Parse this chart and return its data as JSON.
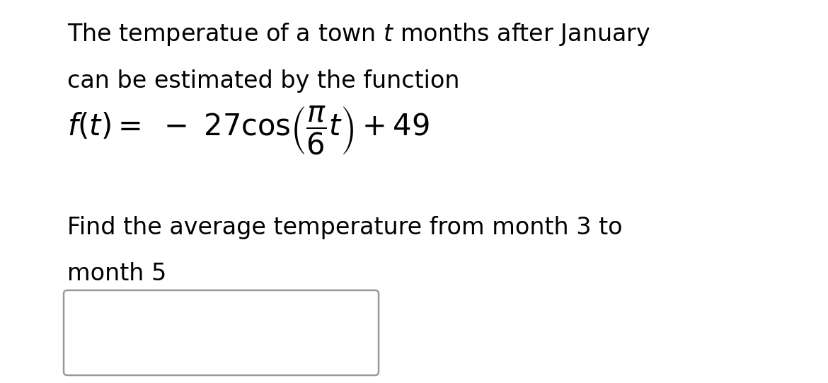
{
  "line1_pre": "The temperatue of a town ",
  "line1_italic": "t",
  "line1_post": " months after January",
  "line2": "can be estimated by the function",
  "line3": "Find the average temperature from month 3 to",
  "line4": "month 5",
  "background_color": "#ffffff",
  "text_color": "#000000",
  "box_color": "#999999",
  "font_size_main": 24,
  "font_size_formula": 30,
  "fig_width": 11.7,
  "fig_height": 5.41,
  "dpi": 100
}
